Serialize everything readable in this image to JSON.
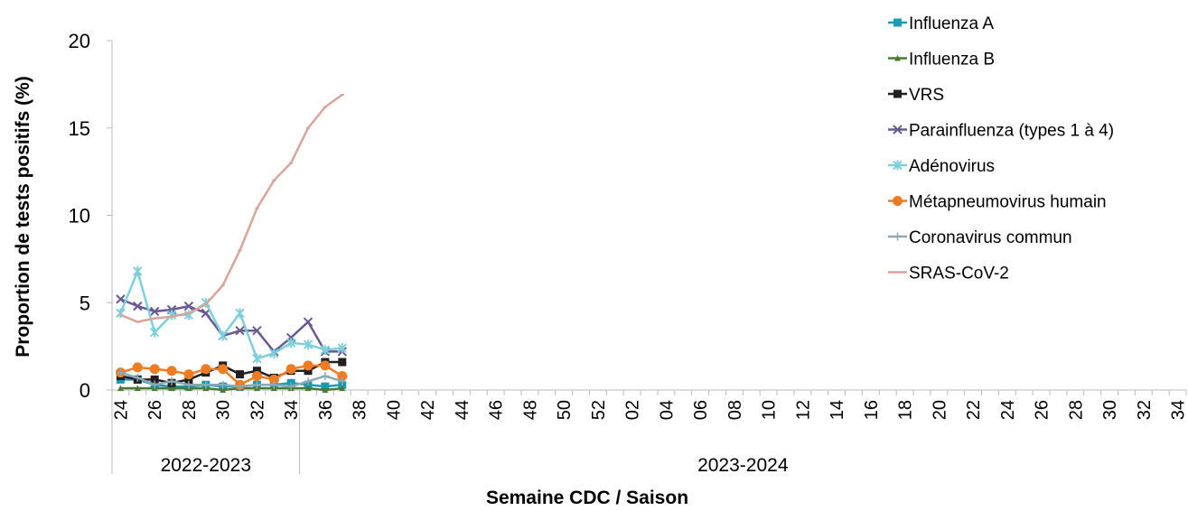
{
  "chart_data": {
    "type": "line",
    "y_label": "Proportion de tests positifs (%)",
    "x_label": "Semaine CDC / Saison",
    "ylim": [
      0,
      20
    ],
    "yticks": [
      0,
      5,
      10,
      15,
      20
    ],
    "legend": "right",
    "categories": [
      "24",
      null,
      "26",
      null,
      "28",
      null,
      "30",
      null,
      "32",
      null,
      "34",
      null,
      "36",
      null,
      "38",
      null,
      "40",
      null,
      "42",
      null,
      "44",
      null,
      "46",
      null,
      "48",
      null,
      "50",
      null,
      "52",
      null,
      "02",
      null,
      "04",
      null,
      "06",
      null,
      "08",
      null,
      "10",
      null,
      "12",
      null,
      "14",
      null,
      "16",
      null,
      "18",
      null,
      "20",
      null,
      "22",
      null,
      "24",
      null,
      "26",
      null,
      "28",
      null,
      "30",
      null,
      "32",
      null,
      "34"
    ],
    "x_groups": [
      {
        "label": "2022-2023",
        "count": 11
      },
      {
        "label": "2023-2024",
        "count": 52
      }
    ],
    "series": [
      {
        "name": "Influenza A",
        "color": "#1a9bb0",
        "marker": "square",
        "values": [
          0.6,
          0.6,
          0.3,
          0.2,
          0.2,
          0.3,
          0.2,
          0.2,
          0.3,
          0.3,
          0.4,
          0.3,
          0.2,
          0.3,
          null,
          null,
          null,
          null,
          null,
          null,
          null,
          null,
          null,
          null,
          null,
          null,
          null,
          null,
          null,
          null,
          null,
          null,
          null,
          null,
          null,
          null,
          null,
          null,
          null,
          null,
          null,
          null,
          null,
          null,
          null,
          null,
          null,
          null,
          null,
          null,
          null,
          null,
          null,
          null,
          null,
          null,
          null,
          null,
          null,
          null,
          null,
          null,
          null
        ]
      },
      {
        "name": "Influenza B",
        "color": "#4a7a35",
        "marker": "triangle",
        "values": [
          0.1,
          0.1,
          0.1,
          0.1,
          0.1,
          0.1,
          0.0,
          0.1,
          0.1,
          0.1,
          0.1,
          0.1,
          0.0,
          0.1,
          null,
          null,
          null,
          null,
          null,
          null,
          null,
          null,
          null,
          null,
          null,
          null,
          null,
          null,
          null,
          null,
          null,
          null,
          null,
          null,
          null,
          null,
          null,
          null,
          null,
          null,
          null,
          null,
          null,
          null,
          null,
          null,
          null,
          null,
          null,
          null,
          null,
          null,
          null,
          null,
          null,
          null,
          null,
          null,
          null,
          null,
          null,
          null,
          null
        ]
      },
      {
        "name": "VRS",
        "color": "#231f20",
        "marker": "square",
        "values": [
          0.8,
          0.6,
          0.6,
          0.4,
          0.6,
          1.0,
          1.4,
          0.9,
          1.1,
          0.7,
          1.1,
          1.1,
          1.6,
          1.6,
          null,
          null,
          null,
          null,
          null,
          null,
          null,
          null,
          null,
          null,
          null,
          null,
          null,
          null,
          null,
          null,
          null,
          null,
          null,
          null,
          null,
          null,
          null,
          null,
          null,
          null,
          null,
          null,
          null,
          null,
          null,
          null,
          null,
          null,
          null,
          null,
          null,
          null,
          null,
          null,
          null,
          null,
          null,
          null,
          null,
          null,
          null,
          null,
          null
        ]
      },
      {
        "name": "Parainfluenza (types 1 à 4)",
        "color": "#6a5a93",
        "marker": "x",
        "values": [
          5.2,
          4.8,
          4.5,
          4.6,
          4.8,
          4.4,
          3.1,
          3.4,
          3.4,
          2.2,
          3.0,
          3.9,
          2.2,
          2.2,
          null,
          null,
          null,
          null,
          null,
          null,
          null,
          null,
          null,
          null,
          null,
          null,
          null,
          null,
          null,
          null,
          null,
          null,
          null,
          null,
          null,
          null,
          null,
          null,
          null,
          null,
          null,
          null,
          null,
          null,
          null,
          null,
          null,
          null,
          null,
          null,
          null,
          null,
          null,
          null,
          null,
          null,
          null,
          null,
          null,
          null,
          null,
          null,
          null
        ]
      },
      {
        "name": "Adénovirus",
        "color": "#7ecfdc",
        "marker": "star",
        "values": [
          4.4,
          6.8,
          3.3,
          4.3,
          4.3,
          5.0,
          3.1,
          4.4,
          1.8,
          2.1,
          2.7,
          2.6,
          2.3,
          2.4,
          null,
          null,
          null,
          null,
          null,
          null,
          null,
          null,
          null,
          null,
          null,
          null,
          null,
          null,
          null,
          null,
          null,
          null,
          null,
          null,
          null,
          null,
          null,
          null,
          null,
          null,
          null,
          null,
          null,
          null,
          null,
          null,
          null,
          null,
          null,
          null,
          null,
          null,
          null,
          null,
          null,
          null,
          null,
          null,
          null,
          null,
          null,
          null,
          null
        ]
      },
      {
        "name": "Métapneumovirus humain",
        "color": "#ef7b22",
        "marker": "circle",
        "values": [
          1.0,
          1.3,
          1.2,
          1.1,
          0.9,
          1.2,
          1.2,
          0.3,
          0.8,
          0.6,
          1.2,
          1.4,
          1.4,
          0.8,
          null,
          null,
          null,
          null,
          null,
          null,
          null,
          null,
          null,
          null,
          null,
          null,
          null,
          null,
          null,
          null,
          null,
          null,
          null,
          null,
          null,
          null,
          null,
          null,
          null,
          null,
          null,
          null,
          null,
          null,
          null,
          null,
          null,
          null,
          null,
          null,
          null,
          null,
          null,
          null,
          null,
          null,
          null,
          null,
          null,
          null,
          null,
          null,
          null
        ]
      },
      {
        "name": "Coronavirus commun",
        "color": "#8aaab8",
        "marker": "plus",
        "values": [
          1.0,
          0.7,
          0.3,
          0.5,
          0.3,
          0.3,
          0.3,
          0.2,
          0.3,
          0.3,
          0.2,
          0.5,
          0.8,
          0.5,
          null,
          null,
          null,
          null,
          null,
          null,
          null,
          null,
          null,
          null,
          null,
          null,
          null,
          null,
          null,
          null,
          null,
          null,
          null,
          null,
          null,
          null,
          null,
          null,
          null,
          null,
          null,
          null,
          null,
          null,
          null,
          null,
          null,
          null,
          null,
          null,
          null,
          null,
          null,
          null,
          null,
          null,
          null,
          null,
          null,
          null,
          null,
          null,
          null
        ]
      },
      {
        "name": "SRAS-CoV-2",
        "color": "#d9a59a",
        "marker": "dash",
        "values": [
          4.3,
          3.9,
          4.1,
          4.2,
          4.4,
          4.9,
          6.0,
          8.0,
          10.4,
          12.0,
          13.0,
          15.0,
          16.2,
          16.9,
          null,
          null,
          null,
          null,
          null,
          null,
          null,
          null,
          null,
          null,
          null,
          null,
          null,
          null,
          null,
          null,
          null,
          null,
          null,
          null,
          null,
          null,
          null,
          null,
          null,
          null,
          null,
          null,
          null,
          null,
          null,
          null,
          null,
          null,
          null,
          null,
          null,
          null,
          null,
          null,
          null,
          null,
          null,
          null,
          null,
          null,
          null,
          null,
          null
        ]
      }
    ]
  }
}
